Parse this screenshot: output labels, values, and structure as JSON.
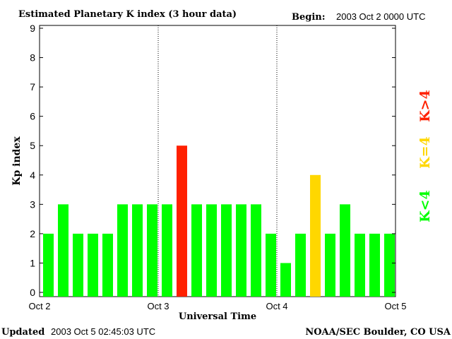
{
  "header": {
    "title": "Estimated Planetary K index (3 hour data)",
    "begin_label": "Begin:",
    "begin_value": "2003 Oct 2 0000 UTC"
  },
  "footer": {
    "updated_label": "Updated",
    "updated_value": "2003 Oct  5 02:45:03 UTC",
    "source": "NOAA/SEC Boulder, CO USA"
  },
  "legend": {
    "low": "K<4",
    "equal": "K=4",
    "high": "K>4"
  },
  "colors": {
    "low": "#00ff00",
    "equal": "#ffd700",
    "high": "#ff2000"
  },
  "chart_data": {
    "type": "bar",
    "title": "Estimated Planetary K index (3 hour data)",
    "xlabel": "Universal Time",
    "ylabel": "Kp index",
    "ylim": [
      0,
      9
    ],
    "yticks": [
      "0",
      "1",
      "2",
      "3",
      "4",
      "5",
      "6",
      "7",
      "8",
      "9"
    ],
    "xticks": [
      "Oct 2",
      "Oct 3",
      "Oct 4",
      "Oct 5"
    ],
    "values": [
      2,
      3,
      2,
      2,
      2,
      3,
      3,
      3,
      3,
      5,
      3,
      3,
      3,
      3,
      3,
      2,
      1,
      2,
      4,
      2,
      3,
      2,
      2,
      2
    ],
    "grid": false
  }
}
